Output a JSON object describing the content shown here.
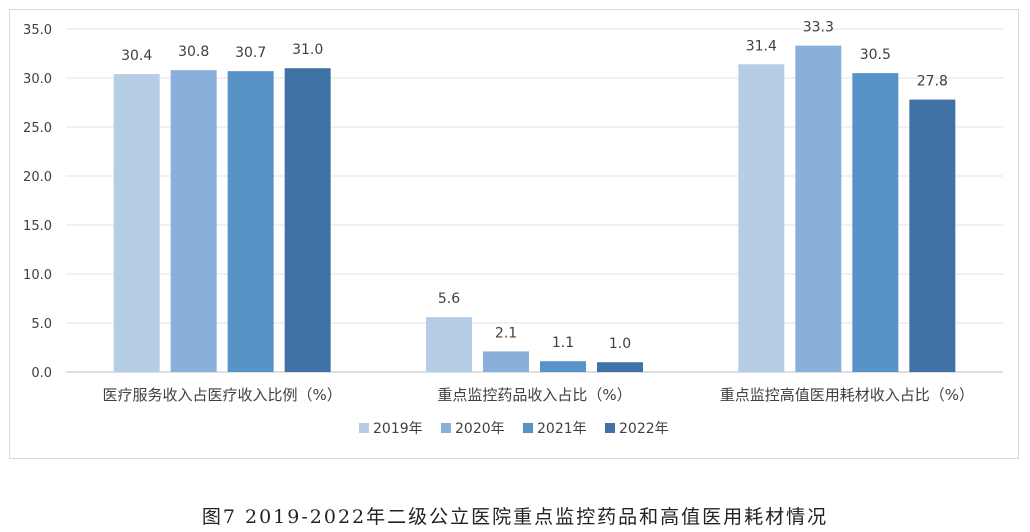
{
  "chart_data": {
    "type": "bar",
    "categories": [
      "医疗服务收入占医疗收入比例（%）",
      "重点监控药品收入占比（%）",
      "重点监控高值医用耗材收入占比（%）"
    ],
    "series": [
      {
        "name": "2019年",
        "values": [
          30.4,
          5.6,
          31.4
        ],
        "color": "#b6cde6"
      },
      {
        "name": "2020年",
        "values": [
          30.8,
          2.1,
          33.3
        ],
        "color": "#89b0da"
      },
      {
        "name": "2021年",
        "values": [
          30.7,
          1.1,
          30.5
        ],
        "color": "#5893c8"
      },
      {
        "name": "2022年",
        "values": [
          31.0,
          1.0,
          27.8
        ],
        "color": "#3f73a6"
      }
    ],
    "data_labels": [
      [
        "30.4",
        "5.6",
        "31.4"
      ],
      [
        "30.8",
        "2.1",
        "33.3"
      ],
      [
        "30.7",
        "1.1",
        "30.5"
      ],
      [
        "31.0",
        "1.0",
        "27.8"
      ]
    ],
    "ylim": [
      0,
      35
    ],
    "yticks": [
      "0.0",
      "5.0",
      "10.0",
      "15.0",
      "20.0",
      "25.0",
      "30.0",
      "35.0"
    ],
    "grid": true,
    "legend_position": "bottom"
  },
  "caption": "图7 2019-2022年二级公立医院重点监控药品和高值医用耗材情况"
}
